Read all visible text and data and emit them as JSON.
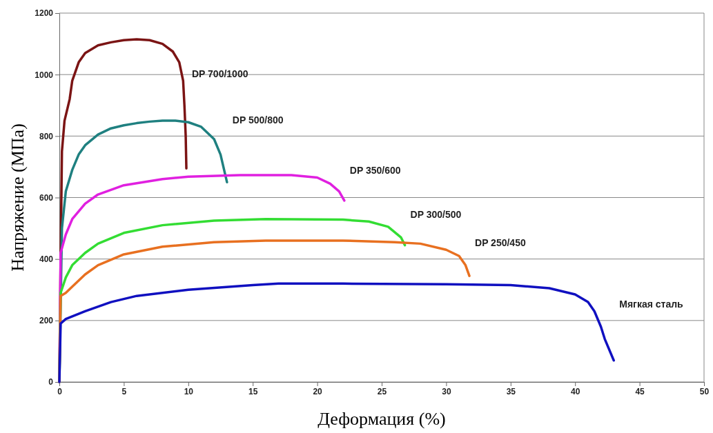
{
  "chart_data": {
    "type": "line",
    "xlabel": "Деформация (%)",
    "ylabel": "Напряжение (МПа)",
    "xlim": [
      0,
      50
    ],
    "ylim": [
      0,
      1200
    ],
    "xticks": [
      0,
      5,
      10,
      15,
      20,
      25,
      30,
      35,
      40,
      45,
      50
    ],
    "yticks": [
      0,
      200,
      400,
      600,
      800,
      1000,
      1200
    ],
    "grid": "y",
    "legend": false,
    "marker": "none",
    "line_style": "solid",
    "series": [
      {
        "name": "DP 700/1000",
        "color": "#7b1414",
        "x": [
          0,
          0.1,
          0.2,
          0.4,
          0.8,
          1,
          1.5,
          2,
          3,
          4,
          5,
          6,
          7,
          8,
          8.8,
          9.3,
          9.6,
          9.7,
          9.8,
          9.85
        ],
        "values": [
          0,
          400,
          750,
          850,
          920,
          980,
          1040,
          1070,
          1095,
          1105,
          1112,
          1115,
          1112,
          1100,
          1075,
          1040,
          980,
          900,
          800,
          695
        ]
      },
      {
        "name": "DP 500/800",
        "color": "#1f8080",
        "x": [
          0,
          0.2,
          0.5,
          1,
          1.5,
          2,
          3,
          4,
          5,
          6,
          7,
          8,
          9,
          10,
          11,
          12,
          12.5,
          13
        ],
        "values": [
          0,
          500,
          620,
          690,
          740,
          770,
          805,
          825,
          835,
          842,
          847,
          850,
          850,
          845,
          830,
          790,
          740,
          650
        ]
      },
      {
        "name": "DP 350/600",
        "color": "#e020e0",
        "x": [
          0,
          0.1,
          0.5,
          1,
          2,
          3,
          5,
          8,
          10,
          14,
          18,
          20,
          21,
          21.7,
          22.1
        ],
        "values": [
          0,
          420,
          480,
          530,
          580,
          610,
          640,
          660,
          668,
          673,
          673,
          665,
          645,
          620,
          590
        ]
      },
      {
        "name": "DP 300/500",
        "color": "#33dd33",
        "x": [
          0,
          0.1,
          0.5,
          1,
          2,
          3,
          5,
          8,
          12,
          16,
          22,
          24,
          25.5,
          26.5,
          26.8
        ],
        "values": [
          0,
          290,
          340,
          380,
          420,
          450,
          485,
          510,
          525,
          530,
          528,
          522,
          505,
          470,
          445
        ]
      },
      {
        "name": "DP 250/450",
        "color": "#e87020",
        "x": [
          0,
          0.1,
          0.5,
          1,
          2,
          3,
          5,
          8,
          12,
          16,
          22,
          26,
          28,
          30,
          31,
          31.5,
          31.8
        ],
        "values": [
          0,
          280,
          290,
          310,
          350,
          380,
          415,
          440,
          455,
          460,
          460,
          455,
          450,
          430,
          410,
          380,
          345
        ]
      },
      {
        "name": "Мягкая сталь",
        "color": "#1010c0",
        "x": [
          0,
          0.1,
          0.5,
          2,
          4,
          6,
          10,
          15,
          17,
          22,
          30,
          35,
          38,
          40,
          41,
          41.5,
          42,
          42.3,
          43
        ],
        "values": [
          0,
          190,
          205,
          230,
          260,
          280,
          300,
          315,
          320,
          320,
          318,
          315,
          305,
          285,
          260,
          230,
          180,
          140,
          70
        ]
      }
    ]
  }
}
